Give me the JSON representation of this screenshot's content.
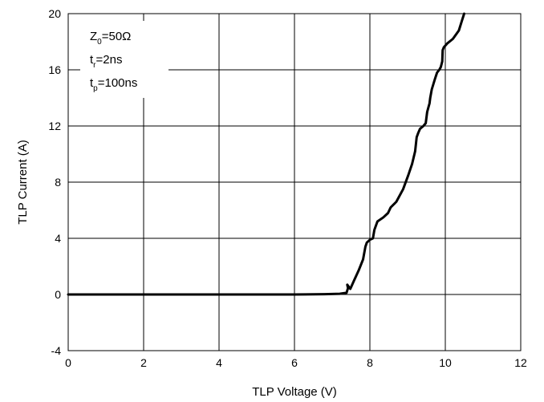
{
  "chart_data": {
    "type": "line",
    "xlabel": "TLP Voltage (V)",
    "ylabel": "TLP Current (A)",
    "xlim": [
      0,
      12
    ],
    "ylim": [
      -4,
      20
    ],
    "xticks": [
      0,
      2,
      4,
      6,
      8,
      10,
      12
    ],
    "yticks": [
      -4,
      0,
      4,
      8,
      12,
      16,
      20
    ],
    "xtick_labels": [
      "0",
      "2",
      "4",
      "6",
      "8",
      "10",
      "12"
    ],
    "ytick_labels": [
      "-4",
      "0",
      "4",
      "8",
      "12",
      "16",
      "20"
    ],
    "grid": true,
    "annotation": {
      "line1": {
        "main": "Z",
        "sub": "0",
        "rest": "=50Ω"
      },
      "line2": {
        "main": "t",
        "sub": "r",
        "rest": "=2ns"
      },
      "line3": {
        "main": "t",
        "sub": "p",
        "rest": "=100ns"
      }
    },
    "series": [
      {
        "color": "#000000",
        "x": [
          0,
          2,
          4,
          6,
          6.8,
          7.2,
          7.38,
          7.42,
          7.4,
          7.48,
          7.58,
          7.7,
          7.82,
          7.88,
          7.92,
          8.0,
          8.08,
          8.12,
          8.2,
          8.36,
          8.48,
          8.55,
          8.7,
          8.88,
          9.02,
          9.12,
          9.2,
          9.24,
          9.28,
          9.33,
          9.42,
          9.48,
          9.52,
          9.56,
          9.58,
          9.6,
          9.64,
          9.72,
          9.78,
          9.84,
          9.88,
          9.92,
          9.93,
          9.96,
          10.06,
          10.2,
          10.36,
          10.44,
          10.5
        ],
        "y": [
          0,
          0,
          0,
          0,
          0.02,
          0.05,
          0.12,
          0.45,
          0.7,
          0.4,
          1.0,
          1.7,
          2.5,
          3.4,
          3.7,
          3.9,
          4.0,
          4.6,
          5.2,
          5.5,
          5.8,
          6.2,
          6.6,
          7.5,
          8.5,
          9.3,
          10.2,
          11.2,
          11.5,
          11.8,
          12.0,
          12.2,
          13.0,
          13.4,
          13.6,
          14.0,
          14.6,
          15.3,
          15.8,
          16.0,
          16.2,
          16.6,
          17.4,
          17.6,
          17.9,
          18.2,
          18.8,
          19.5,
          20.0
        ]
      }
    ]
  }
}
